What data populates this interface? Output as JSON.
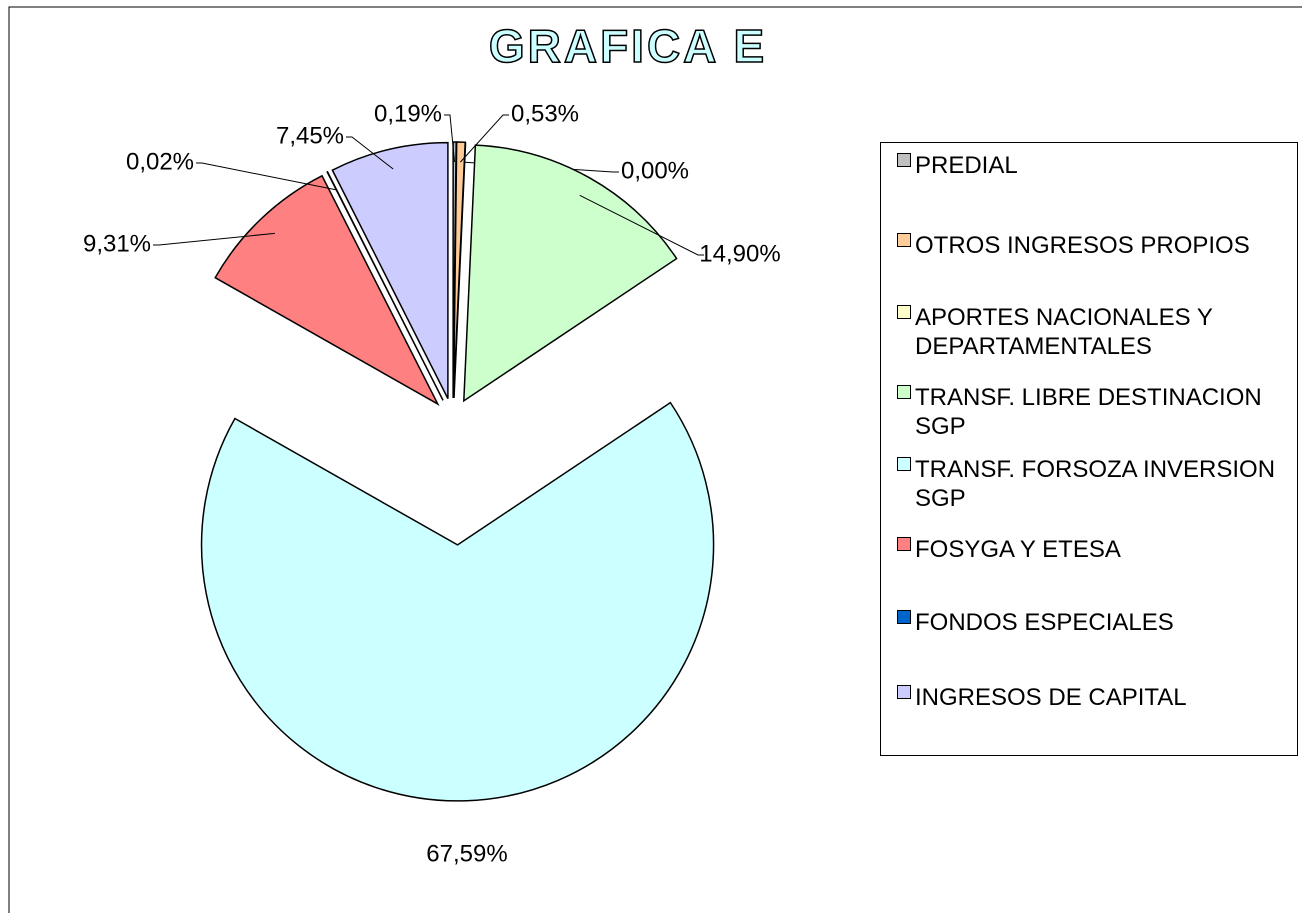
{
  "chart_data": {
    "type": "pie",
    "title": "GRAFICA E",
    "categories": [
      "PREDIAL",
      "OTROS INGRESOS PROPIOS",
      "APORTES NACIONALES Y DEPARTAMENTALES",
      "TRANSF. LIBRE DESTINACION SGP",
      "TRANSF. FORSOZA INVERSION SGP",
      "FOSYGA Y ETESA",
      "FONDOS ESPECIALES",
      "INGRESOS DE CAPITAL"
    ],
    "values": [
      0.19,
      0.53,
      0.0,
      14.9,
      67.59,
      9.31,
      0.02,
      7.45
    ],
    "value_labels": [
      "0,19%",
      "0,53%",
      "0,00%",
      "14,90%",
      "67,59%",
      "9,31%",
      "0,02%",
      "7,45%"
    ],
    "colors": [
      "#c0c0c0",
      "#ffcc99",
      "#ffffcc",
      "#ccffcc",
      "#ccffff",
      "#ff8080",
      "#0066cc",
      "#ccccff"
    ],
    "legend": "right"
  }
}
